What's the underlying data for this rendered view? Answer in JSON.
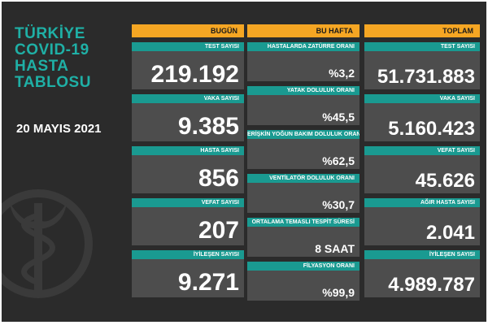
{
  "title_lines": [
    "TÜRKİYE",
    "COVID-19",
    "HASTA",
    "TABLOSU"
  ],
  "date": "20 MAYIS 2021",
  "columns": {
    "today": {
      "header": "BUGÜN",
      "items": [
        {
          "label": "TEST SAYISI",
          "value": "219.192"
        },
        {
          "label": "VAKA SAYISI",
          "value": "9.385"
        },
        {
          "label": "HASTA SAYISI",
          "value": "856"
        },
        {
          "label": "VEFAT SAYISI",
          "value": "207"
        },
        {
          "label": "İYİLEŞEN SAYISI",
          "value": "9.271"
        }
      ]
    },
    "week": {
      "header": "BU HAFTA",
      "items": [
        {
          "label": "HASTALARDA ZATÜRRE ORANI",
          "value": "%3,2"
        },
        {
          "label": "YATAK DOLULUK ORANI",
          "value": "%45,5"
        },
        {
          "label": "ERİŞKİN YOĞUN BAKIM DOLULUK ORANI",
          "value": "%62,5"
        },
        {
          "label": "VENTİLATÖR DOLULUK ORANI",
          "value": "%30,7"
        },
        {
          "label": "ORTALAMA TEMASLI TESPİT SÜRESİ",
          "value": "8 SAAT"
        },
        {
          "label": "FİLYASYON ORANI",
          "value": "%99,9"
        }
      ]
    },
    "total": {
      "header": "TOPLAM",
      "items": [
        {
          "label": "TEST SAYISI",
          "value": "51.731.883"
        },
        {
          "label": "VAKA SAYISI",
          "value": "5.160.423"
        },
        {
          "label": "VEFAT SAYISI",
          "value": "45.626"
        },
        {
          "label": "AĞIR HASTA SAYISI",
          "value": "2.041"
        },
        {
          "label": "İYİLEŞEN SAYISI",
          "value": "4.989.787"
        }
      ]
    }
  }
}
